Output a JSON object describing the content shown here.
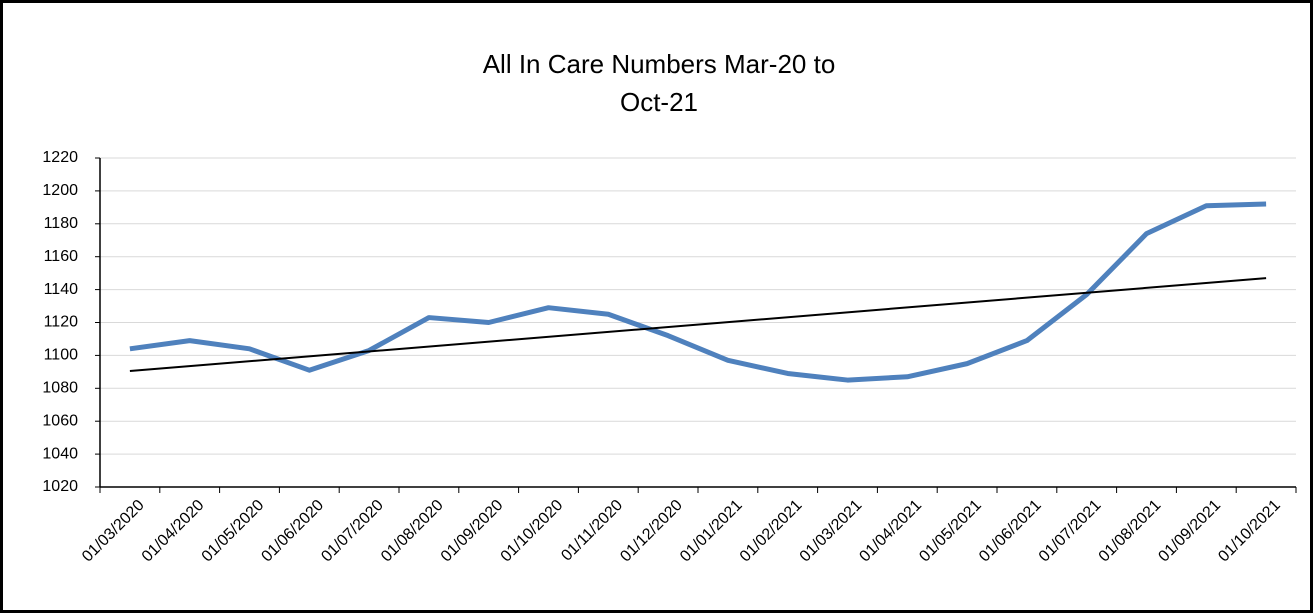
{
  "chart_data": {
    "type": "line",
    "title": "All In Care Numbers Mar-20 to Oct-21",
    "categories": [
      "01/03/2020",
      "01/04/2020",
      "01/05/2020",
      "01/06/2020",
      "01/07/2020",
      "01/08/2020",
      "01/09/2020",
      "01/10/2020",
      "01/11/2020",
      "01/12/2020",
      "01/01/2021",
      "01/02/2021",
      "01/03/2021",
      "01/04/2021",
      "01/05/2021",
      "01/06/2021",
      "01/07/2021",
      "01/08/2021",
      "01/09/2021",
      "01/10/2021"
    ],
    "values": [
      1104,
      1109,
      1104,
      1091,
      1103,
      1123,
      1120,
      1129,
      1125,
      1112,
      1097,
      1089,
      1085,
      1087,
      1095,
      1109,
      1137,
      1174,
      1191,
      1192
    ],
    "color": "#4f81bd",
    "trend": {
      "color": "#000000",
      "start": 1090.5,
      "end": 1147
    },
    "ylim": [
      1020,
      1220
    ],
    "yticks": [
      1020,
      1040,
      1060,
      1080,
      1100,
      1120,
      1140,
      1160,
      1180,
      1200,
      1220
    ],
    "grid": true
  }
}
